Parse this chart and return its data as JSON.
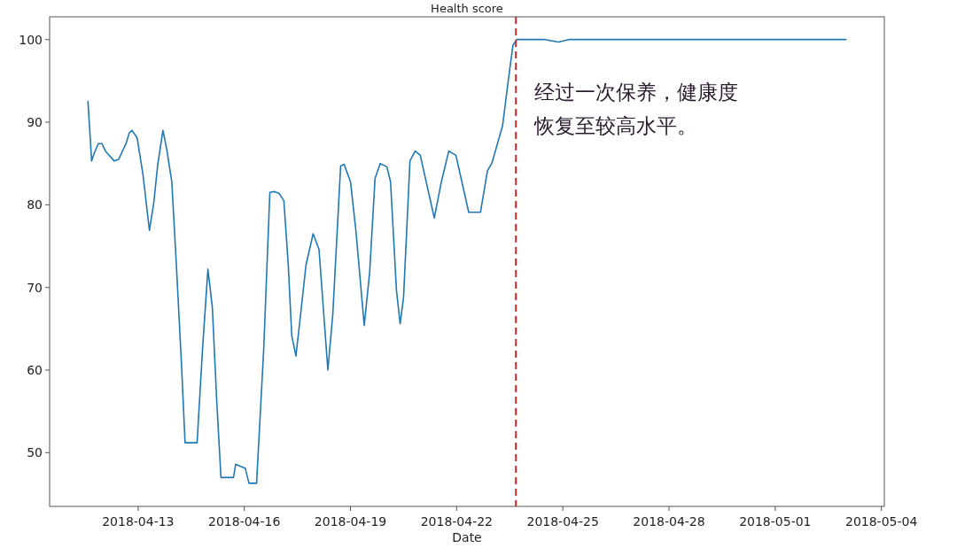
{
  "chart_data": {
    "type": "line",
    "title": "Health score",
    "xlabel": "Date",
    "xlim": [
      "2018-04-10T12:00",
      "2018-05-04T02:00"
    ],
    "ylim": [
      43.5,
      102.75
    ],
    "xticks": [
      "2018-04-13",
      "2018-04-16",
      "2018-04-19",
      "2018-04-22",
      "2018-04-25",
      "2018-04-28",
      "2018-05-01",
      "2018-05-04"
    ],
    "yticks": [
      50,
      60,
      70,
      80,
      90,
      100
    ],
    "x": [
      "2018-04-11T14:00",
      "2018-04-11T16:30",
      "2018-04-11T18:10",
      "2018-04-11T21:00",
      "2018-04-11T23:30",
      "2018-04-12T01:50",
      "2018-04-12T07:50",
      "2018-04-12T10:50",
      "2018-04-12T16:00",
      "2018-04-12T18:00",
      "2018-04-12T19:50",
      "2018-04-12T23:20",
      "2018-04-13T03:20",
      "2018-04-13T07:40",
      "2018-04-13T10:40",
      "2018-04-13T13:20",
      "2018-04-13T16:50",
      "2018-04-13T19:20",
      "2018-04-13T22:50",
      "2018-04-14T01:50",
      "2018-04-14T05:30",
      "2018-04-14T07:50",
      "2018-04-14T16:00",
      "2018-04-14T19:40",
      "2018-04-14T23:20",
      "2018-04-15T02:20",
      "2018-04-15T05:20",
      "2018-04-15T08:10",
      "2018-04-15T16:40",
      "2018-04-15T18:10",
      "2018-04-16T00:40",
      "2018-04-16T03:10",
      "2018-04-16T08:20",
      "2018-04-16T13:10",
      "2018-04-16T17:20",
      "2018-04-16T20:20",
      "2018-04-16T23:30",
      "2018-04-17T02:50",
      "2018-04-17T05:50",
      "2018-04-17T08:10",
      "2018-04-17T11:00",
      "2018-04-17T14:10",
      "2018-04-17T17:50",
      "2018-04-17T22:40",
      "2018-04-18T02:40",
      "2018-04-18T08:40",
      "2018-04-18T12:00",
      "2018-04-18T17:20",
      "2018-04-18T19:40",
      "2018-04-19T00:00",
      "2018-04-19T03:40",
      "2018-04-19T09:20",
      "2018-04-19T13:00",
      "2018-04-19T16:40",
      "2018-04-19T20:10",
      "2018-04-20T00:40",
      "2018-04-20T03:10",
      "2018-04-20T07:10",
      "2018-04-20T09:40",
      "2018-04-20T12:00",
      "2018-04-20T16:20",
      "2018-04-20T19:50",
      "2018-04-20T23:20",
      "2018-04-21T08:50",
      "2018-04-21T13:40",
      "2018-04-21T18:40",
      "2018-04-21T23:30",
      "2018-04-22T08:10",
      "2018-04-22T16:10",
      "2018-04-22T20:50",
      "2018-04-23T00:00",
      "2018-04-23T07:10",
      "2018-04-23T10:40",
      "2018-04-23T14:10",
      "2018-04-23T16:40",
      "2018-04-24T12:00",
      "2018-04-24T21:00",
      "2018-04-25T04:00",
      "2018-05-03T00:00"
    ],
    "series": [
      {
        "color": "#1f77b4",
        "values": [
          92.5,
          85.3,
          86.2,
          87.4,
          87.4,
          86.5,
          85.3,
          85.5,
          87.5,
          88.7,
          89.0,
          88.1,
          83.6,
          76.9,
          80.3,
          84.9,
          89.0,
          86.8,
          82.8,
          73.1,
          60.4,
          51.2,
          51.2,
          62.5,
          72.2,
          67.6,
          56.2,
          47.0,
          47.0,
          48.6,
          48.1,
          46.3,
          46.3,
          62.5,
          81.5,
          81.6,
          81.4,
          80.5,
          72.7,
          64.2,
          61.7,
          66.7,
          72.7,
          76.5,
          74.6,
          60.0,
          66.7,
          84.7,
          84.9,
          82.8,
          76.9,
          65.4,
          71.8,
          83.2,
          85.0,
          84.6,
          82.8,
          69.7,
          65.6,
          68.8,
          85.3,
          86.5,
          86.0,
          78.4,
          82.8,
          86.5,
          86.0,
          79.1,
          79.1,
          84.1,
          85.1,
          89.6,
          94.6,
          99.3,
          100.0,
          100.0,
          99.7,
          100.0,
          100.0
        ]
      }
    ],
    "ref_lines": [
      {
        "axis": "x",
        "value": "2018-04-23T16:10",
        "color": "#d62728",
        "line_style": "dashed"
      }
    ],
    "annotations": [
      "经过一次保养，健康度恢复至较高水平。"
    ]
  }
}
